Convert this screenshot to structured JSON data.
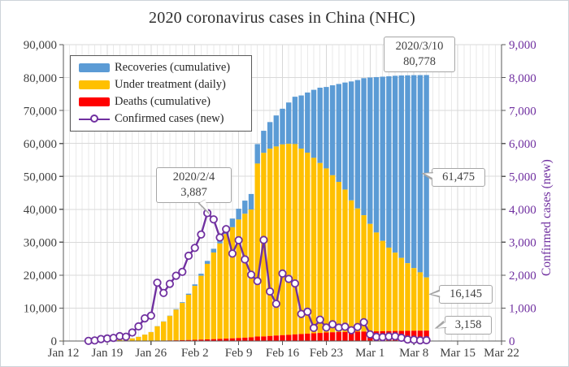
{
  "title": "2020 coronavirus cases in China (NHC)",
  "axes": {
    "y_left_labels": [
      "0",
      "10,000",
      "20,000",
      "30,000",
      "40,000",
      "50,000",
      "60,000",
      "70,000",
      "80,000",
      "90,000"
    ],
    "y_right_labels": [
      "0",
      "1,000",
      "2,000",
      "3,000",
      "4,000",
      "5,000",
      "6,000",
      "7,000",
      "8,000",
      "9,000"
    ],
    "x_tick_labels": [
      "Jan 12",
      "Jan 19",
      "Jan 26",
      "Feb 2",
      "Feb 9",
      "Feb 16",
      "Feb 23",
      "Mar 1",
      "Mar 8",
      "Mar 15",
      "Mar 22"
    ],
    "left_label_color": "#3f3f3f",
    "right_label_color": "#7030A0",
    "x_label_color": "#3f3f3f"
  },
  "annotations": [
    {
      "lines": [
        "2020/3/10",
        "80,778"
      ]
    },
    {
      "lines": [
        "2020/2/4",
        "3,887"
      ]
    },
    {
      "lines": [
        "61,475"
      ]
    },
    {
      "lines": [
        "16,145"
      ]
    },
    {
      "lines": [
        "3,158"
      ]
    }
  ],
  "chart_data": {
    "type": "bar",
    "subtype": "stacked-bars-with-line-overlay",
    "title": "2020 coronavirus cases in China (NHC)",
    "ylabel_right": "Confirmed cases (new)",
    "ylim_left": [
      0,
      90000
    ],
    "ylim_right": [
      0,
      9000
    ],
    "x_range_days": [
      "Jan 12",
      "Mar 22"
    ],
    "grid": "on",
    "legend_position": "upper-left-inside",
    "dates": [
      "Jan 12",
      "Jan 13",
      "Jan 14",
      "Jan 15",
      "Jan 16",
      "Jan 17",
      "Jan 18",
      "Jan 19",
      "Jan 20",
      "Jan 21",
      "Jan 22",
      "Jan 23",
      "Jan 24",
      "Jan 25",
      "Jan 26",
      "Jan 27",
      "Jan 28",
      "Jan 29",
      "Jan 30",
      "Jan 31",
      "Feb 1",
      "Feb 2",
      "Feb 3",
      "Feb 4",
      "Feb 5",
      "Feb 6",
      "Feb 7",
      "Feb 8",
      "Feb 9",
      "Feb 10",
      "Feb 11",
      "Feb 12",
      "Feb 13",
      "Feb 14",
      "Feb 15",
      "Feb 16",
      "Feb 17",
      "Feb 18",
      "Feb 19",
      "Feb 20",
      "Feb 21",
      "Feb 22",
      "Feb 23",
      "Feb 24",
      "Feb 25",
      "Feb 26",
      "Feb 27",
      "Feb 28",
      "Feb 29",
      "Mar 1",
      "Mar 2",
      "Mar 3",
      "Mar 4",
      "Mar 5",
      "Mar 6",
      "Mar 7",
      "Mar 8",
      "Mar 9",
      "Mar 10"
    ],
    "series": [
      {
        "name": "Recoveries (cumulative)",
        "type": "bar",
        "axis": "left",
        "stack_position": "top",
        "color": "#5B9BD5",
        "values": [
          7,
          7,
          7,
          12,
          15,
          19,
          24,
          25,
          25,
          25,
          28,
          34,
          38,
          49,
          51,
          60,
          103,
          124,
          171,
          243,
          328,
          475,
          632,
          892,
          1153,
          1540,
          2050,
          2649,
          3281,
          3996,
          4740,
          5911,
          6723,
          8096,
          9419,
          10844,
          12552,
          14376,
          16155,
          18264,
          20659,
          22888,
          24734,
          27323,
          29745,
          32495,
          36117,
          39002,
          41625,
          44462,
          47204,
          49856,
          52045,
          53726,
          55404,
          57065,
          58600,
          59897,
          61475
        ]
      },
      {
        "name": "Under treatment (daily)",
        "type": "bar",
        "axis": "left",
        "stack_position": "middle",
        "color": "#FFC000",
        "values": [
          33,
          33,
          33,
          27,
          28,
          41,
          94,
          170,
          260,
          406,
          526,
          771,
          1208,
          1870,
          2613,
          4349,
          5739,
          7417,
          9308,
          11289,
          13748,
          16369,
          19381,
          22942,
          26302,
          28985,
          31774,
          33738,
          35982,
          37626,
          38800,
          52526,
          55748,
          56873,
          57416,
          57934,
          58016,
          57805,
          56303,
          54965,
          53284,
          51606,
          49824,
          47672,
          45604,
          43258,
          39919,
          37414,
          35329,
          32652,
          30004,
          27433,
          25352,
          23784,
          22177,
          20533,
          19016,
          17721,
          16145
        ]
      },
      {
        "name": "Deaths (cumulative)",
        "type": "bar",
        "axis": "left",
        "stack_position": "bottom",
        "color": "#FF0000",
        "values": [
          1,
          1,
          1,
          2,
          2,
          2,
          3,
          3,
          6,
          9,
          17,
          25,
          41,
          56,
          80,
          106,
          132,
          170,
          213,
          259,
          304,
          361,
          425,
          490,
          563,
          636,
          722,
          811,
          908,
          1016,
          1113,
          1367,
          1380,
          1523,
          1665,
          1770,
          1868,
          2004,
          2118,
          2236,
          2345,
          2442,
          2592,
          2663,
          2715,
          2744,
          2788,
          2835,
          2870,
          2912,
          2943,
          2981,
          3012,
          3042,
          3070,
          3097,
          3119,
          3136,
          3158
        ]
      },
      {
        "name": "Confirmed cases (new)",
        "type": "line",
        "axis": "right",
        "color": "#7030A0",
        "marker": "open-circle",
        "values": [
          null,
          null,
          null,
          null,
          4,
          17,
          59,
          77,
          93,
          149,
          131,
          259,
          444,
          688,
          769,
          1771,
          1459,
          1737,
          1982,
          2102,
          2590,
          2829,
          3235,
          3887,
          3694,
          3143,
          3399,
          2656,
          3062,
          2478,
          2015,
          1820,
          3070,
          1503,
          1130,
          2048,
          1886,
          1749,
          820,
          889,
          397,
          648,
          409,
          508,
          406,
          433,
          327,
          427,
          573,
          202,
          125,
          119,
          139,
          143,
          99,
          44,
          40,
          19,
          24
        ]
      }
    ],
    "totals_on_mar_10": {
      "confirmed_cumulative": "80,778",
      "recoveries": "61,475",
      "under_treatment": "16,145",
      "deaths": "3,158"
    },
    "peak_new_cases": {
      "date": "2020/2/4",
      "value": "3,887"
    },
    "colors": {
      "recoveries": "#5B9BD5",
      "under_treatment": "#FFC000",
      "deaths": "#FF0000",
      "new_confirmed": "#7030A0",
      "grid": "#dcdcdc",
      "axis": "#595959"
    }
  }
}
